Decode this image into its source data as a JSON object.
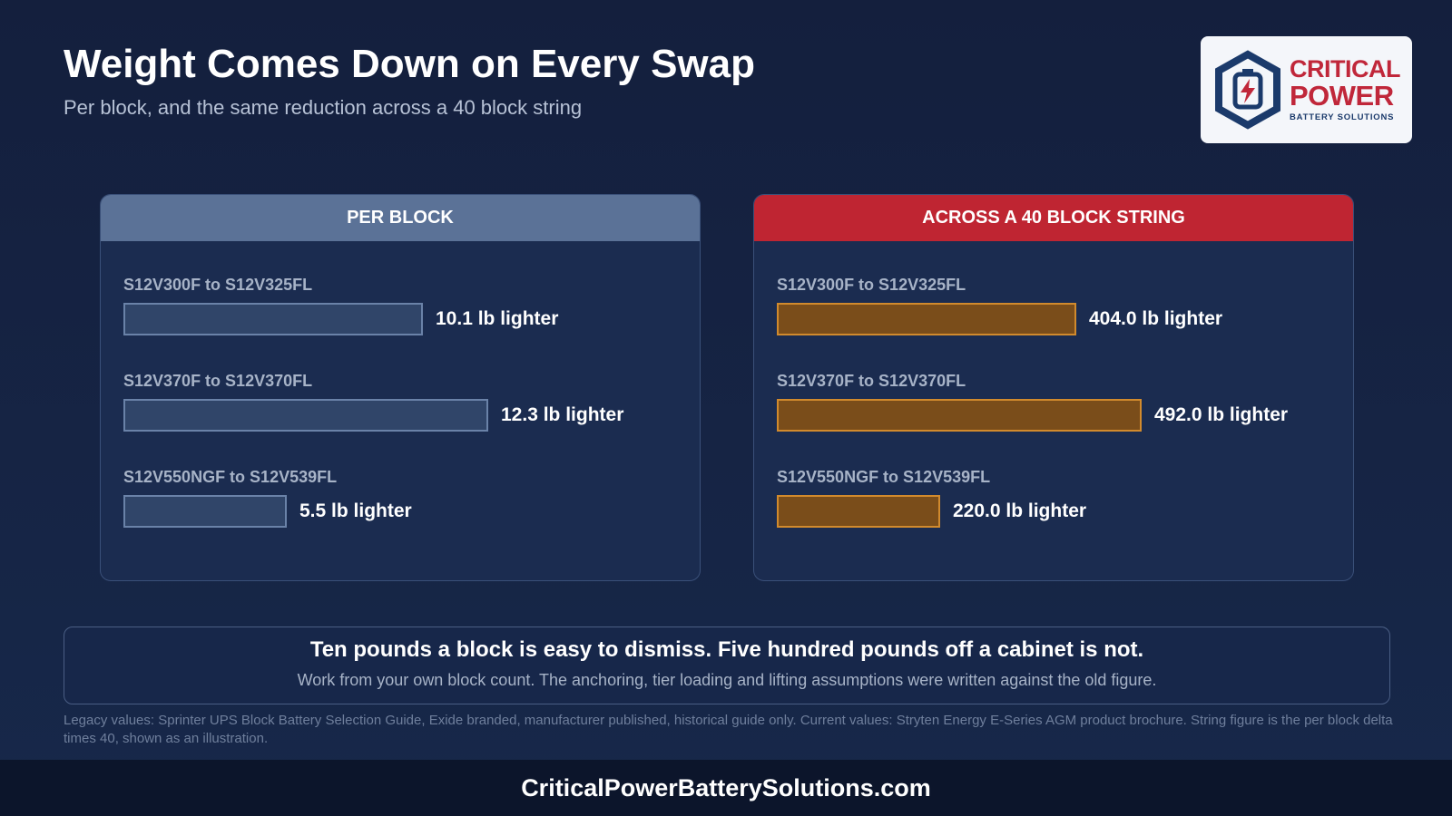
{
  "title": "Weight Comes Down on Every Swap",
  "subtitle": "Per block, and the same reduction across a 40 block string",
  "logo": {
    "line1": "CRITICAL",
    "line2": "POWER",
    "line3": "BATTERY SOLUTIONS",
    "icon": "battery-bolt-hexagon-icon"
  },
  "chart_data": [
    {
      "type": "bar",
      "orientation": "horizontal",
      "title": "PER BLOCK",
      "categories": [
        "S12V300F to S12V325FL",
        "S12V370F to S12V370FL",
        "S12V550NGF to S12V539FL"
      ],
      "values": [
        10.1,
        12.3,
        5.5
      ],
      "value_labels": [
        "10.1 lb lighter",
        "12.3 lb lighter",
        "5.5 lb lighter"
      ],
      "unit": "lb",
      "color": "#304569"
    },
    {
      "type": "bar",
      "orientation": "horizontal",
      "title": "ACROSS A 40 BLOCK STRING",
      "categories": [
        "S12V300F to S12V325FL",
        "S12V370F to S12V370FL",
        "S12V550NGF to S12V539FL"
      ],
      "values": [
        404.0,
        492.0,
        220.0
      ],
      "value_labels": [
        "404.0 lb lighter",
        "492.0 lb lighter",
        "220.0 lb lighter"
      ],
      "unit": "lb",
      "color": "#7a4d1a"
    }
  ],
  "callout": {
    "headline": "Ten pounds a block is easy to dismiss. Five hundred pounds off a cabinet is not.",
    "subtext": "Work from your own block count. The anchoring, tier loading and lifting assumptions were written against the old figure."
  },
  "source_note": "Legacy values: Sprinter UPS Block Battery Selection Guide, Exide branded, manufacturer published, historical guide only. Current values: Stryten Energy E-Series AGM product brochure. String figure is the per block delta times 40, shown as an illustration.",
  "footer": "CriticalPowerBatterySolutions.com"
}
